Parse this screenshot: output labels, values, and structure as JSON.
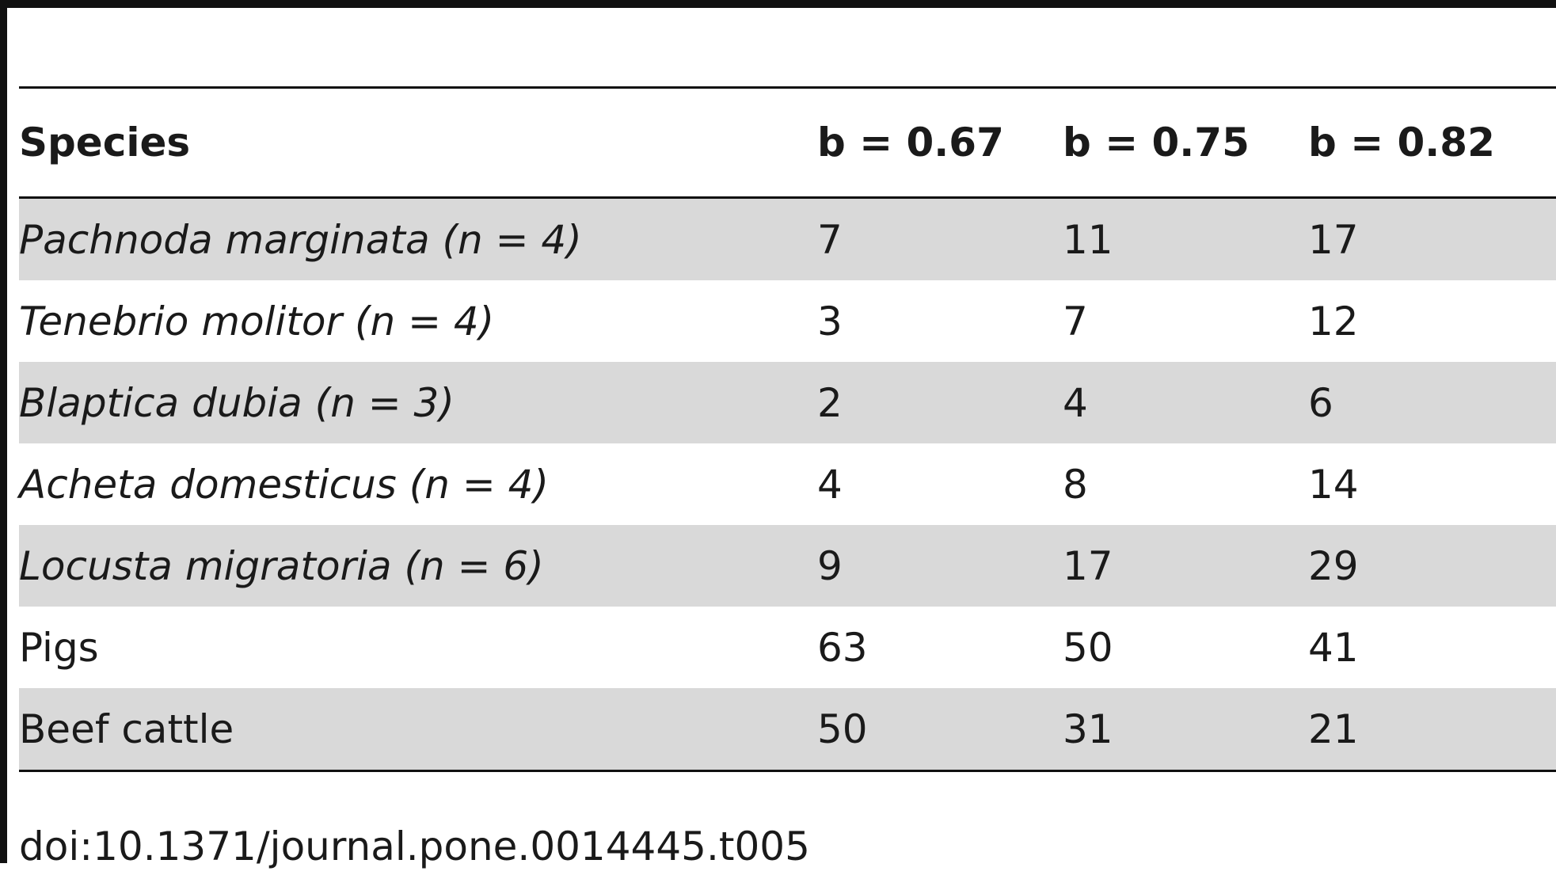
{
  "table": {
    "headers": [
      "Species",
      "b = 0.67",
      "b = 0.75",
      "b = 0.82"
    ],
    "rows": [
      {
        "species": "Pachnoda marginata (n = 4)",
        "italic": true,
        "values": [
          "7",
          "11",
          "17"
        ]
      },
      {
        "species": "Tenebrio molitor (n = 4)",
        "italic": true,
        "values": [
          "3",
          "7",
          "12"
        ]
      },
      {
        "species": "Blaptica dubia (n = 3)",
        "italic": true,
        "values": [
          "2",
          "4",
          "6"
        ]
      },
      {
        "species": "Acheta domesticus (n = 4)",
        "italic": true,
        "values": [
          "4",
          "8",
          "14"
        ]
      },
      {
        "species": "Locusta migratoria (n = 6)",
        "italic": true,
        "values": [
          "9",
          "17",
          "29"
        ]
      },
      {
        "species": "Pigs",
        "italic": false,
        "values": [
          "63",
          "50",
          "41"
        ]
      },
      {
        "species": "Beef cattle",
        "italic": false,
        "values": [
          "50",
          "31",
          "21"
        ]
      }
    ]
  },
  "footer": {
    "doi": "doi:10.1371/journal.pone.0014445.t005"
  },
  "colors": {
    "rule": "#111111",
    "shaded_row": "#d9d9d9",
    "text": "#1a1a1a"
  }
}
